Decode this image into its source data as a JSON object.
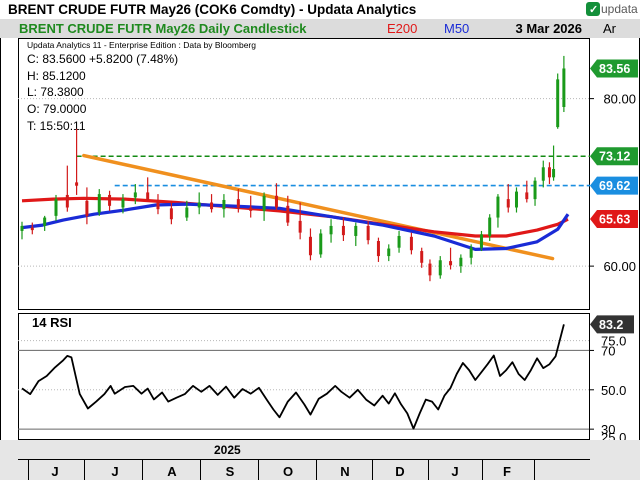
{
  "window": {
    "title": "BRENT CRUDE FUTR  May26 (COK6 Comdty) -   Updata Analytics",
    "logo_text": "updata"
  },
  "header": {
    "chart_title": "BRENT CRUDE FUTR  May26 Daily Candlestick",
    "e200_label": "E200",
    "m50_label": "M50",
    "date_label": "3 Mar 2026",
    "axis_header": "Ar"
  },
  "info": {
    "edition": "Updata Analytics 11 - Enterprise Edition : Data by Bloomberg",
    "close": "C: 83.5600  +5.8200 (7.48%)",
    "high": "H: 85.1200",
    "low": "L: 78.3800",
    "open": "O: 79.0000",
    "time": "T: 15:50:11"
  },
  "x_axis": {
    "year_label": "2025",
    "months": [
      "J",
      "J",
      "A",
      "S",
      "O",
      "N",
      "D",
      "J",
      "F"
    ]
  },
  "colors": {
    "title_green": "#1f8a1f",
    "e200_red": "#e01818",
    "m50_blue": "#1a2bd6",
    "orange_trend": "#f0901e",
    "resistance_green": "#138a13",
    "support_blue": "#1a8ee0",
    "candle_green": "#1a9a1a",
    "candle_red": "#d21a1a"
  },
  "chart_data": [
    {
      "type": "candlestick",
      "title": "BRENT CRUDE FUTR  May26 Daily Candlestick",
      "y_ticks": [
        "80.00",
        "60.00"
      ],
      "y_range": [
        55,
        87
      ],
      "last_price": "83.56",
      "levels": [
        {
          "name": "resistance",
          "value": 73.12,
          "label": "73.12",
          "style": "dashed green"
        },
        {
          "name": "support",
          "value": 69.62,
          "label": "69.62",
          "style": "dashed blue"
        },
        {
          "name": "E200",
          "value": 65.63,
          "label": "65.63",
          "style": "red line"
        }
      ],
      "series_e200": [
        [
          0,
          67.8
        ],
        [
          30,
          68.0
        ],
        [
          60,
          68.1
        ],
        [
          100,
          68.0
        ],
        [
          150,
          67.6
        ],
        [
          200,
          67.1
        ],
        [
          250,
          66.6
        ],
        [
          300,
          65.9
        ],
        [
          350,
          65.0
        ],
        [
          400,
          64.1
        ],
        [
          440,
          63.6
        ],
        [
          470,
          63.6
        ],
        [
          500,
          64.3
        ],
        [
          520,
          65.0
        ],
        [
          530,
          65.6
        ]
      ],
      "series_m50": [
        [
          0,
          64.6
        ],
        [
          20,
          64.9
        ],
        [
          40,
          65.5
        ],
        [
          70,
          66.2
        ],
        [
          100,
          66.7
        ],
        [
          130,
          67.3
        ],
        [
          160,
          67.4
        ],
        [
          200,
          67.2
        ],
        [
          250,
          66.9
        ],
        [
          300,
          65.9
        ],
        [
          350,
          64.9
        ],
        [
          400,
          63.6
        ],
        [
          440,
          62.0
        ],
        [
          470,
          62.1
        ],
        [
          500,
          62.9
        ],
        [
          520,
          64.4
        ],
        [
          530,
          66.2
        ]
      ],
      "trendline": [
        [
          60,
          73.2
        ],
        [
          515,
          60.9
        ]
      ],
      "candles": [
        [
          0,
          64.2,
          65.3,
          63.2,
          64.8
        ],
        [
          10,
          64.6,
          65.2,
          63.8,
          64.3
        ],
        [
          22,
          64.8,
          66.0,
          64.2,
          65.8
        ],
        [
          33,
          66.0,
          68.5,
          65.4,
          68.0
        ],
        [
          44,
          68.5,
          72.0,
          66.5,
          67.0
        ],
        [
          53,
          70.0,
          76.4,
          68.5,
          69.6
        ],
        [
          63,
          67.8,
          69.4,
          65.0,
          66.0
        ],
        [
          75,
          66.4,
          69.2,
          66.0,
          68.6
        ],
        [
          85,
          68.5,
          69.0,
          66.6,
          67.2
        ],
        [
          98,
          67.0,
          68.6,
          66.3,
          68.0
        ],
        [
          110,
          68.2,
          69.8,
          67.4,
          68.8
        ],
        [
          122,
          68.8,
          70.6,
          67.8,
          67.9
        ],
        [
          132,
          67.7,
          68.6,
          66.2,
          66.8
        ],
        [
          145,
          66.9,
          67.8,
          65.0,
          65.6
        ],
        [
          160,
          65.8,
          67.8,
          65.4,
          67.0
        ],
        [
          172,
          67.0,
          68.8,
          66.2,
          67.6
        ],
        [
          184,
          67.6,
          68.6,
          66.4,
          66.8
        ],
        [
          196,
          66.8,
          68.6,
          65.8,
          67.9
        ],
        [
          210,
          68.0,
          69.2,
          66.4,
          67.0
        ],
        [
          222,
          67.0,
          68.4,
          65.8,
          66.6
        ],
        [
          235,
          66.6,
          68.8,
          65.4,
          68.4
        ],
        [
          247,
          68.4,
          69.9,
          66.6,
          67.0
        ],
        [
          258,
          67.2,
          68.4,
          64.8,
          65.2
        ],
        [
          270,
          65.4,
          67.6,
          63.2,
          64.0
        ],
        [
          280,
          63.5,
          64.5,
          60.7,
          61.3
        ],
        [
          290,
          61.4,
          64.4,
          61.0,
          63.9
        ],
        [
          300,
          63.8,
          65.6,
          62.8,
          64.8
        ],
        [
          312,
          64.8,
          65.8,
          63.0,
          63.7
        ],
        [
          324,
          63.6,
          65.2,
          62.4,
          64.8
        ],
        [
          336,
          64.8,
          65.4,
          62.6,
          63.1
        ],
        [
          346,
          63.0,
          63.4,
          60.5,
          61.2
        ],
        [
          356,
          61.2,
          62.6,
          60.6,
          62.1
        ],
        [
          366,
          62.2,
          64.2,
          61.6,
          63.6
        ],
        [
          378,
          63.5,
          64.0,
          61.4,
          61.9
        ],
        [
          388,
          61.8,
          62.2,
          59.8,
          60.4
        ],
        [
          396,
          60.3,
          60.8,
          58.2,
          58.9
        ],
        [
          406,
          58.9,
          61.2,
          58.5,
          60.7
        ],
        [
          416,
          60.6,
          62.2,
          59.6,
          60.1
        ],
        [
          426,
          60.0,
          61.4,
          59.2,
          61.0
        ],
        [
          436,
          61.0,
          62.6,
          60.2,
          62.2
        ],
        [
          446,
          62.2,
          64.2,
          61.8,
          63.8
        ],
        [
          454,
          63.6,
          66.2,
          63.0,
          65.8
        ],
        [
          462,
          65.8,
          68.6,
          64.6,
          68.3
        ],
        [
          472,
          68.0,
          69.8,
          66.4,
          67.0
        ],
        [
          480,
          67.0,
          69.4,
          66.4,
          68.9
        ],
        [
          490,
          68.8,
          70.2,
          67.6,
          68.0
        ],
        [
          498,
          68.0,
          70.6,
          67.2,
          70.2
        ],
        [
          506,
          70.2,
          72.6,
          69.4,
          71.8
        ],
        [
          512,
          71.8,
          72.4,
          69.8,
          70.6
        ],
        [
          516,
          70.6,
          74.4,
          70.2,
          71.6
        ],
        [
          520,
          76.6,
          83.0,
          76.4,
          82.3
        ],
        [
          526,
          79.0,
          85.1,
          78.4,
          83.6
        ]
      ]
    },
    {
      "type": "line",
      "title": "14 RSI",
      "y_ticks": [
        "70",
        "50.0",
        "30"
      ],
      "y_range": [
        25,
        88
      ],
      "last_value": "83.2",
      "hidden_tick_labels": [
        "75.0",
        "25.0"
      ],
      "series": [
        [
          0,
          50.7
        ],
        [
          8,
          47.8
        ],
        [
          16,
          54.4
        ],
        [
          24,
          57.0
        ],
        [
          32,
          61.4
        ],
        [
          40,
          65.0
        ],
        [
          44,
          67.2
        ],
        [
          48,
          66.5
        ],
        [
          56,
          47.9
        ],
        [
          64,
          40.5
        ],
        [
          72,
          44.0
        ],
        [
          80,
          47.8
        ],
        [
          86,
          52.0
        ],
        [
          90,
          48.0
        ],
        [
          100,
          51.4
        ],
        [
          108,
          52.0
        ],
        [
          116,
          48.0
        ],
        [
          122,
          50.6
        ],
        [
          128,
          45.1
        ],
        [
          136,
          48.6
        ],
        [
          142,
          44.0
        ],
        [
          150,
          46.0
        ],
        [
          158,
          47.8
        ],
        [
          166,
          52.0
        ],
        [
          174,
          49.0
        ],
        [
          182,
          52.0
        ],
        [
          190,
          47.4
        ],
        [
          198,
          51.6
        ],
        [
          206,
          46.0
        ],
        [
          214,
          50.4
        ],
        [
          222,
          48.0
        ],
        [
          230,
          51.0
        ],
        [
          238,
          44.6
        ],
        [
          244,
          40.0
        ],
        [
          250,
          36.0
        ],
        [
          258,
          44.0
        ],
        [
          266,
          48.6
        ],
        [
          274,
          42.6
        ],
        [
          280,
          37.4
        ],
        [
          288,
          45.4
        ],
        [
          296,
          48.0
        ],
        [
          304,
          52.0
        ],
        [
          310,
          49.0
        ],
        [
          318,
          46.0
        ],
        [
          326,
          50.0
        ],
        [
          334,
          45.0
        ],
        [
          342,
          42.0
        ],
        [
          350,
          47.0
        ],
        [
          356,
          43.0
        ],
        [
          362,
          48.2
        ],
        [
          368,
          42.6
        ],
        [
          374,
          38.0
        ],
        [
          380,
          30.3
        ],
        [
          386,
          38.0
        ],
        [
          392,
          45.0
        ],
        [
          398,
          44.0
        ],
        [
          404,
          40.0
        ],
        [
          410,
          47.0
        ],
        [
          416,
          51.0
        ],
        [
          422,
          58.0
        ],
        [
          428,
          63.6
        ],
        [
          434,
          60.0
        ],
        [
          440,
          55.0
        ],
        [
          446,
          59.0
        ],
        [
          452,
          63.0
        ],
        [
          458,
          67.4
        ],
        [
          464,
          57.0
        ],
        [
          470,
          60.0
        ],
        [
          476,
          64.0
        ],
        [
          482,
          58.0
        ],
        [
          488,
          55.0
        ],
        [
          494,
          60.0
        ],
        [
          500,
          66.0
        ],
        [
          506,
          61.0
        ],
        [
          512,
          63.0
        ],
        [
          518,
          67.0
        ],
        [
          526,
          83.2
        ]
      ]
    }
  ]
}
